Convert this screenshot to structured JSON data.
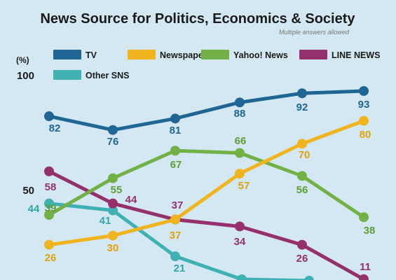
{
  "chart_data": {
    "type": "line",
    "title": "News Source for Politics, Economics & Society",
    "subtitle": "Multiple answers allowed",
    "ylabel": "(%)",
    "ylim": [
      0,
      100
    ],
    "yticks": [
      100,
      50
    ],
    "categories": [
      "",
      "",
      "",
      "",
      "",
      ""
    ],
    "legend_position": "top-left",
    "grid": false,
    "series": [
      {
        "name": "TV",
        "color": "#1f6695",
        "label_color": "#1f6695",
        "values": [
          82,
          76,
          81,
          88,
          92,
          93
        ]
      },
      {
        "name": "Newspaper",
        "color": "#f0b41e",
        "label_color": "#e0a20e",
        "values": [
          26,
          30,
          37,
          57,
          70,
          80
        ]
      },
      {
        "name": "Yahoo! News",
        "color": "#72b146",
        "label_color": "#5f9f35",
        "values": [
          39,
          55,
          67,
          66,
          56,
          38
        ]
      },
      {
        "name": "LINE NEWS",
        "color": "#95306d",
        "label_color": "#95306d",
        "values": [
          58,
          44,
          37,
          34,
          26,
          11
        ]
      },
      {
        "name": "Other SNS",
        "color": "#3fb1b2",
        "label_color": "#33a5a6",
        "values": [
          44,
          41,
          21,
          null,
          null,
          null
        ]
      }
    ]
  }
}
